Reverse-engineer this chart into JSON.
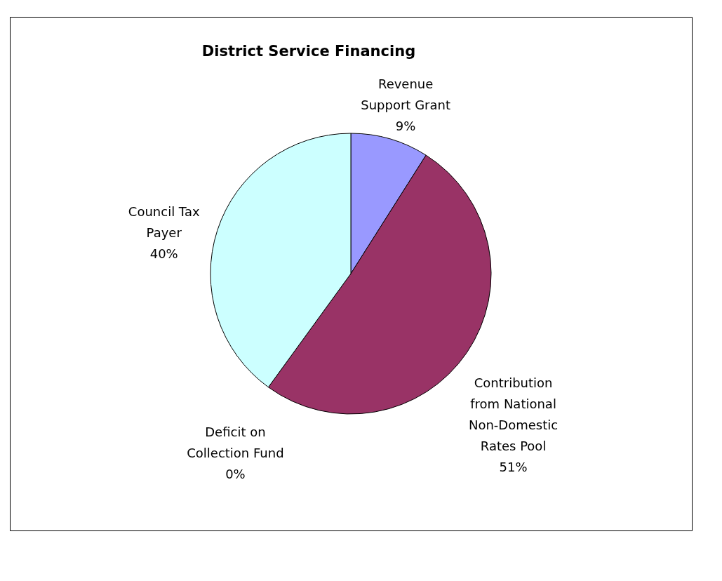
{
  "chart_data": {
    "type": "pie",
    "title": "District Service Financing",
    "categories": [
      "Revenue\nSupport Grant",
      "Contribution\nfrom National\nNon-Domestic\nRates Pool",
      "Deficit on\nCollection Fund",
      "Council Tax\nPayer"
    ],
    "values": [
      9,
      51,
      0,
      40
    ],
    "value_labels": [
      "9%",
      "51%",
      "0%",
      "40%"
    ],
    "colors": [
      "#9999ff",
      "#993366",
      "#ffffcc",
      "#ccffff"
    ],
    "legend": false
  }
}
